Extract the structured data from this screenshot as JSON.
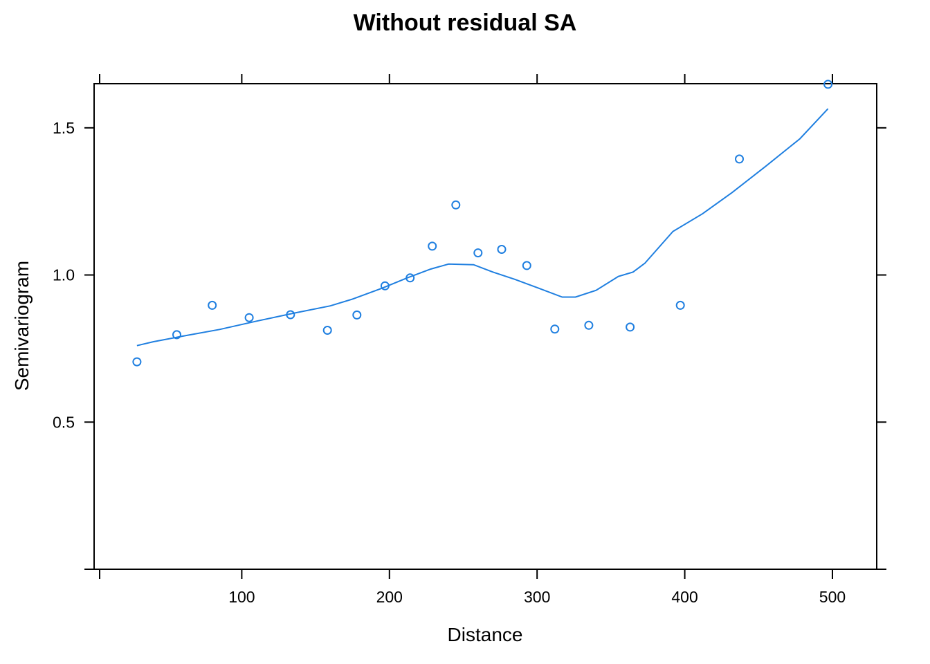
{
  "chart_data": {
    "type": "scatter",
    "title": "Without residual SA",
    "xlabel": "Distance",
    "ylabel": "Semivariogram",
    "xlim": [
      0,
      530
    ],
    "ylim": [
      0,
      1.65
    ],
    "xticks": [
      100,
      200,
      300,
      400,
      500
    ],
    "yticks": [
      0.5,
      1.0,
      1.5
    ],
    "xtick_labels": [
      "100",
      "200",
      "300",
      "400",
      "500"
    ],
    "ytick_labels": [
      "0.5",
      "1.0",
      "1.5"
    ],
    "grid": false,
    "colors": {
      "series": "#1f7fe0",
      "axes": "#000000"
    },
    "points": [
      {
        "x": 29,
        "y": 0.705
      },
      {
        "x": 56,
        "y": 0.797
      },
      {
        "x": 80,
        "y": 0.897
      },
      {
        "x": 105,
        "y": 0.855
      },
      {
        "x": 133,
        "y": 0.865
      },
      {
        "x": 158,
        "y": 0.812
      },
      {
        "x": 178,
        "y": 0.864
      },
      {
        "x": 197,
        "y": 0.963
      },
      {
        "x": 214,
        "y": 0.99
      },
      {
        "x": 229,
        "y": 1.098
      },
      {
        "x": 245,
        "y": 1.238
      },
      {
        "x": 260,
        "y": 1.075
      },
      {
        "x": 276,
        "y": 1.087
      },
      {
        "x": 293,
        "y": 1.032
      },
      {
        "x": 312,
        "y": 0.816
      },
      {
        "x": 335,
        "y": 0.829
      },
      {
        "x": 363,
        "y": 0.823
      },
      {
        "x": 397,
        "y": 0.897
      },
      {
        "x": 437,
        "y": 1.394
      },
      {
        "x": 497,
        "y": 1.648
      }
    ],
    "smooth_line": [
      {
        "x": 29,
        "y": 0.76
      },
      {
        "x": 40,
        "y": 0.773
      },
      {
        "x": 60,
        "y": 0.792
      },
      {
        "x": 85,
        "y": 0.815
      },
      {
        "x": 110,
        "y": 0.843
      },
      {
        "x": 135,
        "y": 0.87
      },
      {
        "x": 160,
        "y": 0.895
      },
      {
        "x": 175,
        "y": 0.918
      },
      {
        "x": 195,
        "y": 0.955
      },
      {
        "x": 212,
        "y": 0.99
      },
      {
        "x": 228,
        "y": 1.02
      },
      {
        "x": 240,
        "y": 1.037
      },
      {
        "x": 257,
        "y": 1.035
      },
      {
        "x": 270,
        "y": 1.01
      },
      {
        "x": 285,
        "y": 0.985
      },
      {
        "x": 300,
        "y": 0.957
      },
      {
        "x": 317,
        "y": 0.925
      },
      {
        "x": 326,
        "y": 0.925
      },
      {
        "x": 340,
        "y": 0.948
      },
      {
        "x": 355,
        "y": 0.995
      },
      {
        "x": 365,
        "y": 1.01
      },
      {
        "x": 373,
        "y": 1.04
      },
      {
        "x": 392,
        "y": 1.148
      },
      {
        "x": 412,
        "y": 1.208
      },
      {
        "x": 432,
        "y": 1.28
      },
      {
        "x": 455,
        "y": 1.37
      },
      {
        "x": 478,
        "y": 1.463
      },
      {
        "x": 497,
        "y": 1.565
      }
    ]
  }
}
